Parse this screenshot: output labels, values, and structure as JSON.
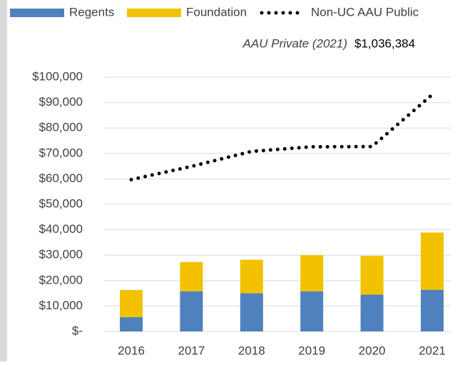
{
  "chart_data": {
    "type": "bar",
    "annotation": {
      "label": "AAU Private (2021)",
      "value": "$1,036,384"
    },
    "categories": [
      "2016",
      "2017",
      "2018",
      "2019",
      "2020",
      "2021"
    ],
    "series": [
      {
        "name": "Regents",
        "color": "#4e81bd",
        "type": "bar",
        "values": [
          5600,
          15800,
          15000,
          15800,
          14500,
          16400
        ]
      },
      {
        "name": "Foundation",
        "color": "#f2c200",
        "type": "bar",
        "values": [
          10700,
          11500,
          13200,
          14200,
          15200,
          22500
        ]
      },
      {
        "name": "Non-UC AAU Public",
        "color": "#000000",
        "type": "line",
        "values": [
          59700,
          64900,
          70800,
          72600,
          72700,
          93100
        ]
      }
    ],
    "stacked": true,
    "ylim": [
      0,
      100000
    ],
    "yticks": [
      {
        "value": 0,
        "label": "$-"
      },
      {
        "value": 10000,
        "label": "$10,000"
      },
      {
        "value": 20000,
        "label": "$20,000"
      },
      {
        "value": 30000,
        "label": "$30,000"
      },
      {
        "value": 40000,
        "label": "$40,000"
      },
      {
        "value": 50000,
        "label": "$50,000"
      },
      {
        "value": 60000,
        "label": "$60,000"
      },
      {
        "value": 70000,
        "label": "$70,000"
      },
      {
        "value": 80000,
        "label": "$80,000"
      },
      {
        "value": 90000,
        "label": "$90,000"
      },
      {
        "value": 100000,
        "label": "$100,000"
      }
    ],
    "grid": true
  }
}
